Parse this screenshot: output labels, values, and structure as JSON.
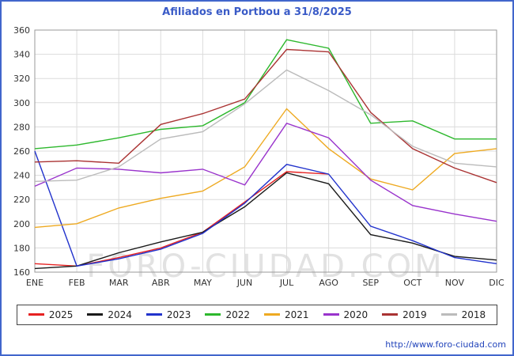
{
  "title": "Afiliados en Portbou a 31/8/2025",
  "watermark": "FORO-CIUDAD.COM",
  "footer": {
    "url": "http://www.foro-ciudad.com"
  },
  "colors": {
    "border": "#4166cc",
    "title": "#3a5bc7",
    "grid": "#dcdcdc",
    "axis": "#999999",
    "tick_text": "#333333",
    "watermark": "#d9d9d9"
  },
  "chart_data": {
    "type": "line",
    "categories": [
      "ENE",
      "FEB",
      "MAR",
      "ABR",
      "MAY",
      "JUN",
      "JUL",
      "AGO",
      "SEP",
      "OCT",
      "NOV",
      "DIC"
    ],
    "ylim": [
      160,
      360
    ],
    "ytick_step": 20,
    "grid": true,
    "legend_position": "bottom",
    "series": [
      {
        "name": "2025",
        "color": "#e62222",
        "values": [
          167,
          165,
          172,
          180,
          193,
          218,
          243,
          241,
          null,
          null,
          null,
          null
        ]
      },
      {
        "name": "2024",
        "color": "#1a1a1a",
        "values": [
          163,
          165,
          176,
          185,
          193,
          214,
          242,
          233,
          191,
          184,
          173,
          170
        ]
      },
      {
        "name": "2023",
        "color": "#2233cc",
        "values": [
          260,
          165,
          171,
          179,
          192,
          217,
          249,
          241,
          198,
          186,
          172,
          167
        ]
      },
      {
        "name": "2022",
        "color": "#2db82d",
        "values": [
          262,
          265,
          271,
          278,
          281,
          300,
          352,
          345,
          283,
          285,
          270,
          270
        ]
      },
      {
        "name": "2021",
        "color": "#eeaa22",
        "values": [
          197,
          200,
          213,
          221,
          227,
          247,
          295,
          262,
          237,
          228,
          258,
          262
        ]
      },
      {
        "name": "2020",
        "color": "#9933cc",
        "values": [
          231,
          246,
          245,
          242,
          245,
          232,
          283,
          271,
          236,
          215,
          208,
          202
        ]
      },
      {
        "name": "2019",
        "color": "#aa3333",
        "values": [
          251,
          252,
          250,
          282,
          291,
          303,
          344,
          342,
          292,
          262,
          246,
          234
        ]
      },
      {
        "name": "2018",
        "color": "#bbbbbb",
        "values": [
          235,
          236,
          247,
          270,
          276,
          299,
          327,
          310,
          290,
          264,
          250,
          247
        ]
      }
    ]
  }
}
